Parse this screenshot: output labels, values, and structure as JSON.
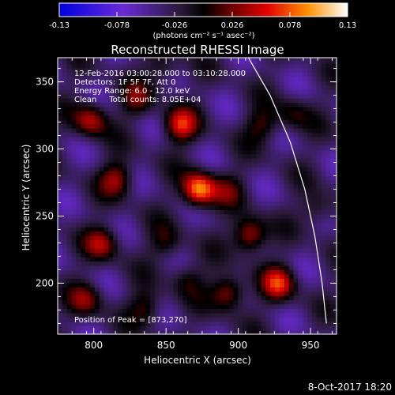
{
  "chart_data": {
    "type": "heatmap",
    "title": "Reconstructed RHESSI Image",
    "xlabel": "Heliocentric X (arcsec)",
    "ylabel": "Heliocentric Y (arcsec)",
    "xlim": [
      775,
      968
    ],
    "ylim": [
      162,
      368
    ],
    "x_ticks": [
      800,
      850,
      900,
      950
    ],
    "y_ticks": [
      200,
      250,
      300,
      350
    ],
    "colorbar": {
      "range": [
        -0.13,
        0.13
      ],
      "ticks": [
        -0.13,
        -0.078,
        -0.026,
        0.026,
        0.078,
        0.13
      ],
      "tick_labels": [
        "-0.13",
        "-0.078",
        "-0.026",
        "0.026",
        "0.078",
        "0.13"
      ],
      "unit_label": "(photons cm⁻² s⁻¹ asec⁻²)"
    },
    "annotations": [
      "12-Feb-2016 03:00:28.000 to 03:10:28.000",
      "Detectors: 1F 5F 7F, Att 0",
      "Energy Range: 6.0 - 12.0 keV",
      "Clean     Total counts: 8.05E+04"
    ],
    "peak_label": "Position of Peak = [873,270]",
    "peak": {
      "x": 873,
      "y": 270
    },
    "sources": [
      {
        "x": 873,
        "y": 270,
        "v": 0.13
      },
      {
        "x": 860,
        "y": 318,
        "v": 0.09
      },
      {
        "x": 798,
        "y": 322,
        "v": 0.08
      },
      {
        "x": 816,
        "y": 278,
        "v": 0.07
      },
      {
        "x": 830,
        "y": 337,
        "v": 0.05
      },
      {
        "x": 806,
        "y": 230,
        "v": 0.07
      },
      {
        "x": 850,
        "y": 230,
        "v": 0.04
      },
      {
        "x": 908,
        "y": 236,
        "v": 0.09
      },
      {
        "x": 928,
        "y": 200,
        "v": 0.09
      },
      {
        "x": 893,
        "y": 193,
        "v": 0.08
      },
      {
        "x": 795,
        "y": 188,
        "v": 0.06
      },
      {
        "x": 836,
        "y": 182,
        "v": 0.05
      },
      {
        "x": 917,
        "y": 318,
        "v": 0.05
      },
      {
        "x": 893,
        "y": 270,
        "v": 0.04
      },
      {
        "x": 848,
        "y": 360,
        "v": 0.04
      },
      {
        "x": 955,
        "y": 255,
        "v": 0.04
      },
      {
        "x": 938,
        "y": 326,
        "v": 0.04
      },
      {
        "x": 865,
        "y": 203,
        "v": 0.04
      }
    ],
    "limb": [
      {
        "x": 907,
        "y": 368
      },
      {
        "x": 922,
        "y": 340
      },
      {
        "x": 936,
        "y": 305
      },
      {
        "x": 946,
        "y": 270
      },
      {
        "x": 953,
        "y": 235
      },
      {
        "x": 958,
        "y": 200
      },
      {
        "x": 961,
        "y": 170
      }
    ]
  },
  "timestamp": "8-Oct-2017 18:20"
}
